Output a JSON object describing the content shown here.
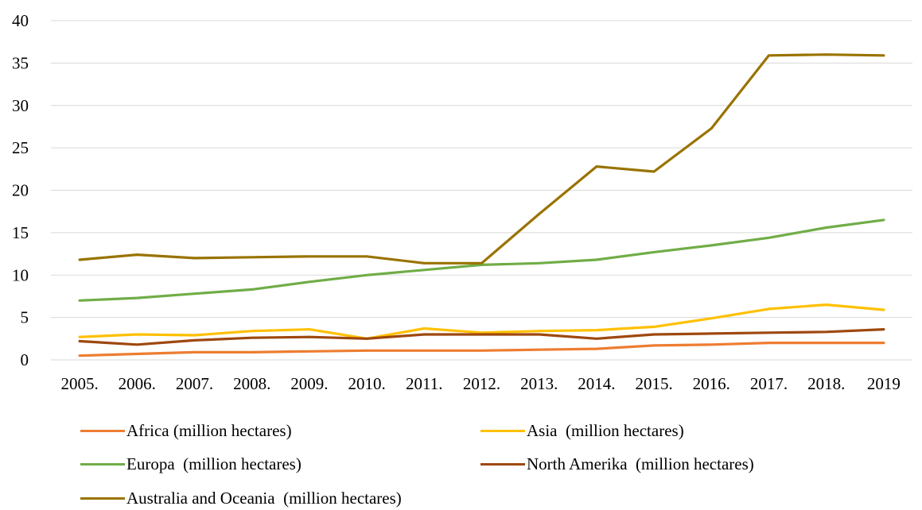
{
  "chart_data": {
    "type": "line",
    "categories": [
      "2005.",
      "2006.",
      "2007.",
      "2008.",
      "2009.",
      "2010.",
      "2011.",
      "2012.",
      "2013.",
      "2014.",
      "2015.",
      "2016.",
      "2017.",
      "2018.",
      "2019"
    ],
    "ylim": [
      0,
      40
    ],
    "yticks": [
      "0",
      "5",
      "10",
      "15",
      "20",
      "25",
      "30",
      "35",
      "40"
    ],
    "grid": true,
    "legend_position": "bottom",
    "series": [
      {
        "name": "Africa (million hectares)",
        "color": "#ED7D31",
        "values": [
          0.5,
          0.7,
          0.9,
          0.9,
          1.0,
          1.1,
          1.1,
          1.1,
          1.2,
          1.3,
          1.7,
          1.8,
          2.0,
          2.0,
          2.0
        ]
      },
      {
        "name": "Asia  (million hectares)",
        "color": "#FFC000",
        "values": [
          2.7,
          3.0,
          2.9,
          3.4,
          3.6,
          2.5,
          3.7,
          3.2,
          3.4,
          3.5,
          3.9,
          4.9,
          6.0,
          6.5,
          5.9
        ]
      },
      {
        "name": "Europa  (million hectares)",
        "color": "#70AD47",
        "values": [
          7.0,
          7.3,
          7.8,
          8.3,
          9.2,
          10.0,
          10.6,
          11.2,
          11.4,
          11.8,
          12.7,
          13.5,
          14.4,
          15.6,
          16.5
        ]
      },
      {
        "name": "North Amerika  (million hectares)",
        "color": "#9E480E",
        "values": [
          2.2,
          1.8,
          2.3,
          2.6,
          2.7,
          2.5,
          3.0,
          3.0,
          3.0,
          2.5,
          3.0,
          3.1,
          3.2,
          3.3,
          3.6
        ]
      },
      {
        "name": "Australia and Oceania  (million hectares)",
        "color": "#997300",
        "values": [
          11.8,
          12.4,
          12.0,
          12.1,
          12.2,
          12.2,
          11.4,
          11.4,
          17.2,
          22.8,
          22.2,
          27.3,
          35.9,
          36.0,
          35.9
        ]
      }
    ]
  }
}
